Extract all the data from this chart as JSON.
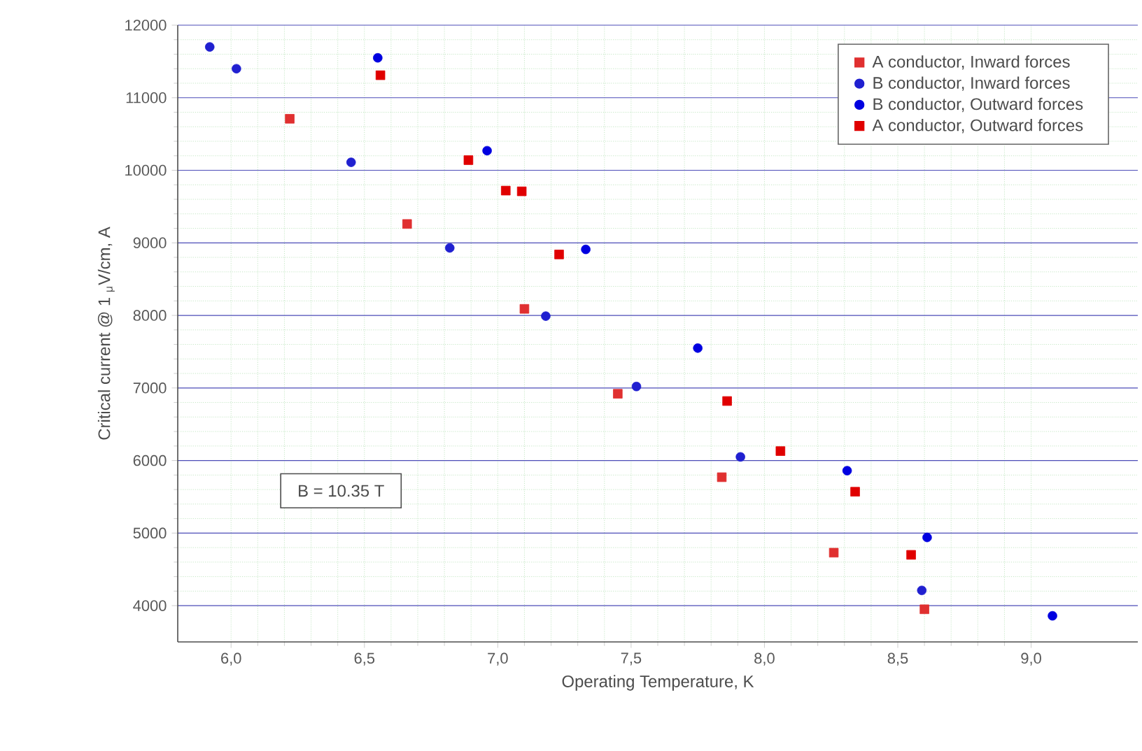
{
  "chart_data": {
    "type": "scatter",
    "xlabel": "Operating Temperature, K",
    "ylabel": "Critical current @ 1 $_{μ}$V/cm, A",
    "xlim": [
      5.8,
      9.4
    ],
    "ylim": [
      3500,
      12000
    ],
    "xticks": [
      {
        "value": 6,
        "label": "6,0"
      },
      {
        "value": 6.5,
        "label": "6,5"
      },
      {
        "value": 7,
        "label": "7,0"
      },
      {
        "value": 7.5,
        "label": "7,5"
      },
      {
        "value": 8,
        "label": "8,0"
      },
      {
        "value": 8.5,
        "label": "8,5"
      },
      {
        "value": 9,
        "label": "9,0"
      }
    ],
    "yticks": [
      4000,
      5000,
      6000,
      7000,
      8000,
      9000,
      10000,
      11000,
      12000
    ],
    "grid": true,
    "legend": "top right",
    "annotations": [
      "B = 10.35 T"
    ],
    "series": [
      {
        "name": "A conductor, Inward forces",
        "color": "#e03030",
        "marker": "square",
        "x": [
          6.22,
          6.66,
          7.1,
          7.45,
          7.84,
          8.26,
          8.6
        ],
        "values": [
          10710,
          9260,
          8090,
          6920,
          5770,
          4730,
          3950
        ]
      },
      {
        "name": "B conductor, Inward forces",
        "color": "#2020d0",
        "marker": "circle",
        "x": [
          5.92,
          6.02,
          6.45,
          6.82,
          7.18,
          7.52,
          7.91,
          8.59
        ],
        "values": [
          11700,
          11400,
          10110,
          8930,
          7990,
          7020,
          6050,
          4210
        ]
      },
      {
        "name": "B conductor, Outward forces",
        "color": "#0000e0",
        "marker": "circle",
        "x": [
          6.55,
          6.96,
          7.33,
          7.75,
          8.31,
          8.61,
          9.08
        ],
        "values": [
          11550,
          10270,
          8910,
          7550,
          5860,
          4940,
          3860
        ]
      },
      {
        "name": "A conductor, Outward forces",
        "color": "#e00000",
        "marker": "square",
        "x": [
          6.56,
          6.89,
          7.03,
          7.09,
          7.23,
          7.86,
          8.06,
          8.34,
          8.55
        ],
        "values": [
          11310,
          10140,
          9720,
          9710,
          8840,
          6820,
          6130,
          5570,
          4700
        ]
      }
    ]
  }
}
